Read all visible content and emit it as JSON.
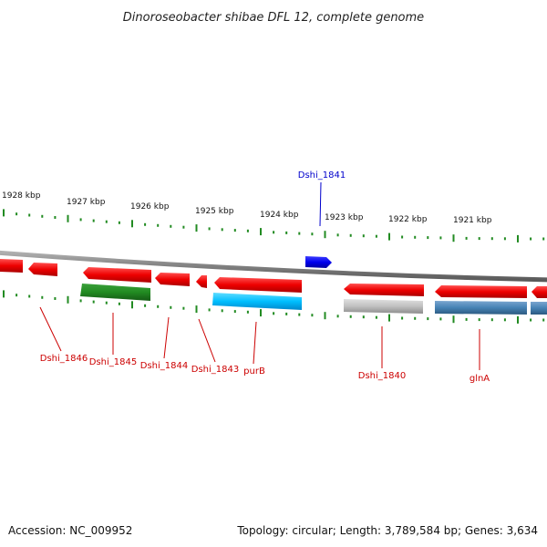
{
  "title": "Dinoroseobacter shibae DFL 12, complete genome",
  "footer": {
    "accession": "Accession: NC_009952",
    "summary": "Topology: circular; Length: 3,789,584 bp; Genes: 3,634"
  },
  "ruler": {
    "ticks": [
      "1928 kbp",
      "1927 kbp",
      "1926 kbp",
      "1925 kbp",
      "1924 kbp",
      "1923 kbp",
      "1922 kbp",
      "1921 kbp"
    ]
  },
  "genes": {
    "dshi_1846": "Dshi_1846",
    "dshi_1845": "Dshi_1845",
    "dshi_1844": "Dshi_1844",
    "dshi_1843": "Dshi_1843",
    "purB": "purB",
    "dshi_1841": "Dshi_1841",
    "dshi_1840": "Dshi_1840",
    "glnA": "glnA"
  },
  "colors": {
    "gene_red": "#ff0000",
    "forward_blue": "#0000ff",
    "green_feature": "#228b22",
    "cyan_feature": "#00bfff",
    "gray_feature": "#c0c0c0",
    "steelblue_feature": "#4682b4",
    "tick_green": "#228b22",
    "backbone": "#808080",
    "label_red": "#cc0000",
    "label_blue": "#0000cc"
  }
}
